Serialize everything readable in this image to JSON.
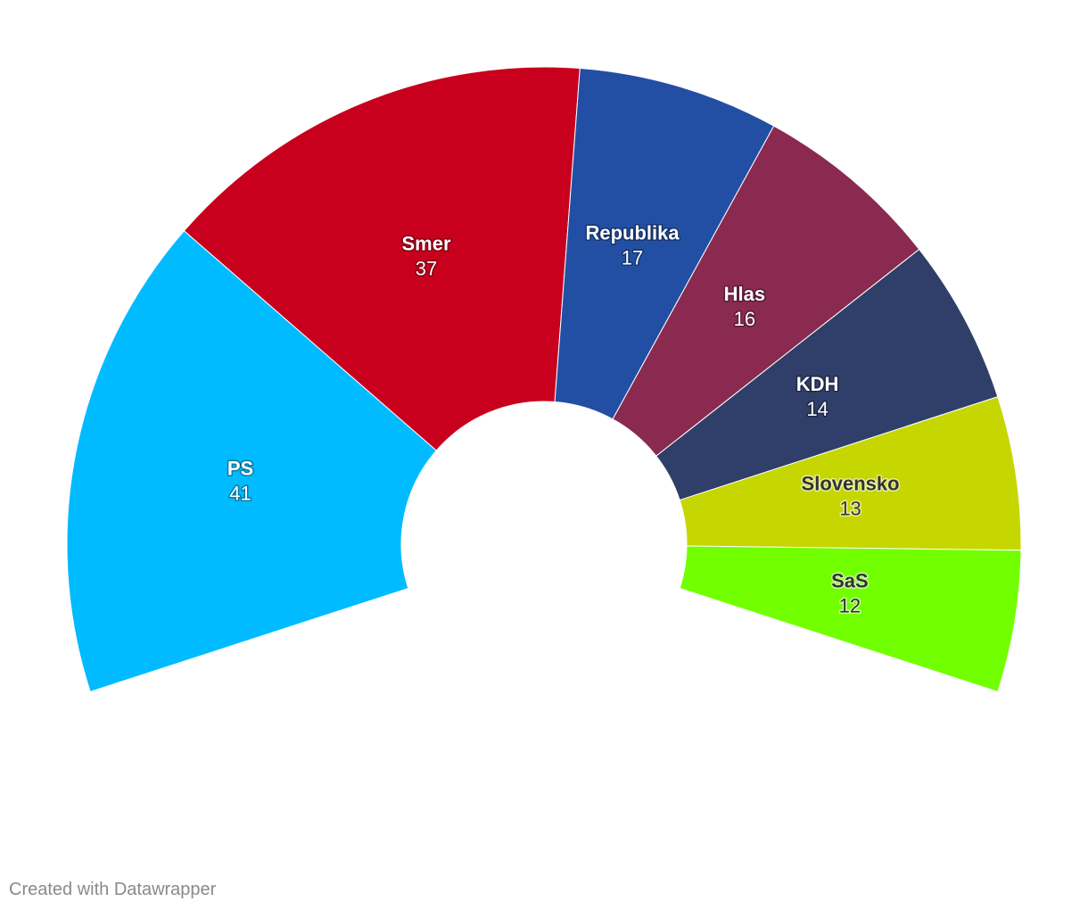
{
  "chart_data": {
    "type": "donut",
    "categories": [
      "PS",
      "Smer",
      "Republika",
      "Hlas",
      "KDH",
      "Slovensko",
      "SaS"
    ],
    "values": [
      41,
      37,
      17,
      16,
      14,
      13,
      12
    ],
    "colors": [
      "#00bbff",
      "#c8001e",
      "#224fa3",
      "#8a2a50",
      "#2f3f69",
      "#c6d600",
      "#72ff00"
    ]
  },
  "footer": "Created with Datawrapper"
}
